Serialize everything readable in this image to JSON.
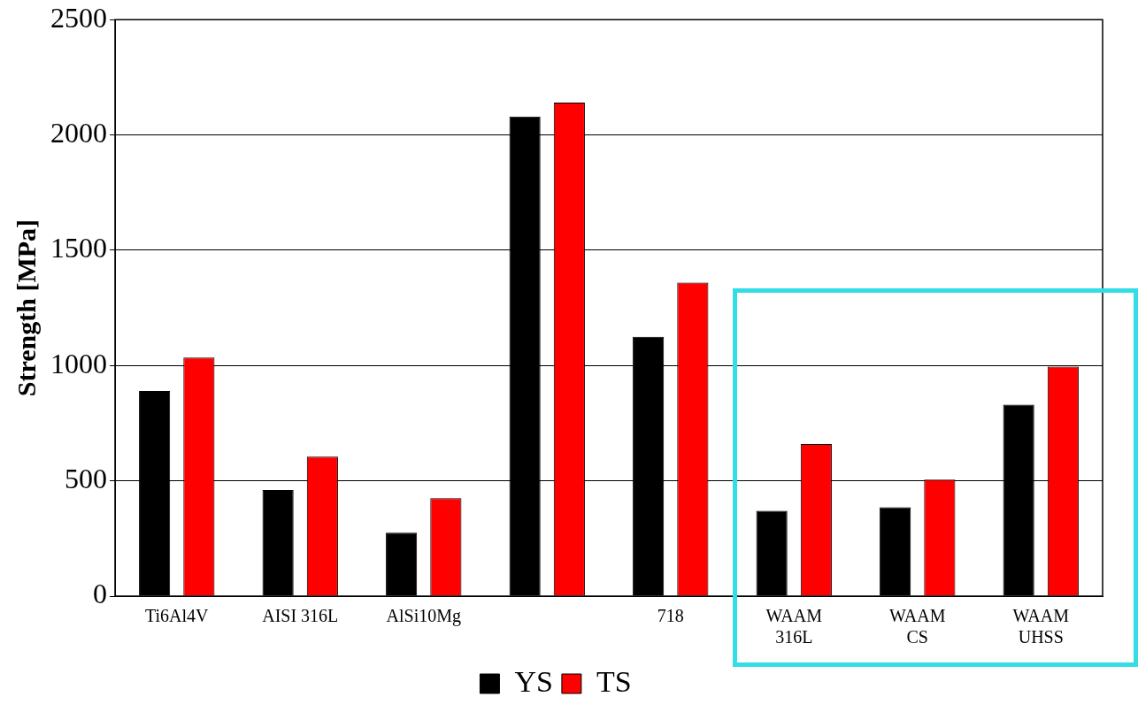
{
  "chart_data": {
    "type": "bar",
    "ylabel": "Strength [MPa]",
    "categories": [
      "Ti6Al4V",
      "AISI 316L",
      "AlSi10Mg",
      null,
      "718",
      "WAAM\n316L",
      "WAAM\nCS",
      "WAAM\nUHSS"
    ],
    "series": [
      {
        "name": "YS",
        "color": "#000000",
        "values": [
          890,
          460,
          275,
          2080,
          1125,
          370,
          385,
          830
        ]
      },
      {
        "name": "TS",
        "color": "#ff0000",
        "values": [
          1035,
          605,
          425,
          2140,
          1360,
          660,
          505,
          995
        ]
      }
    ],
    "ylim": [
      0,
      2500
    ],
    "yticks": [
      0,
      500,
      1000,
      1500,
      2000,
      2500
    ],
    "grid": "y",
    "legend": "bottom"
  }
}
